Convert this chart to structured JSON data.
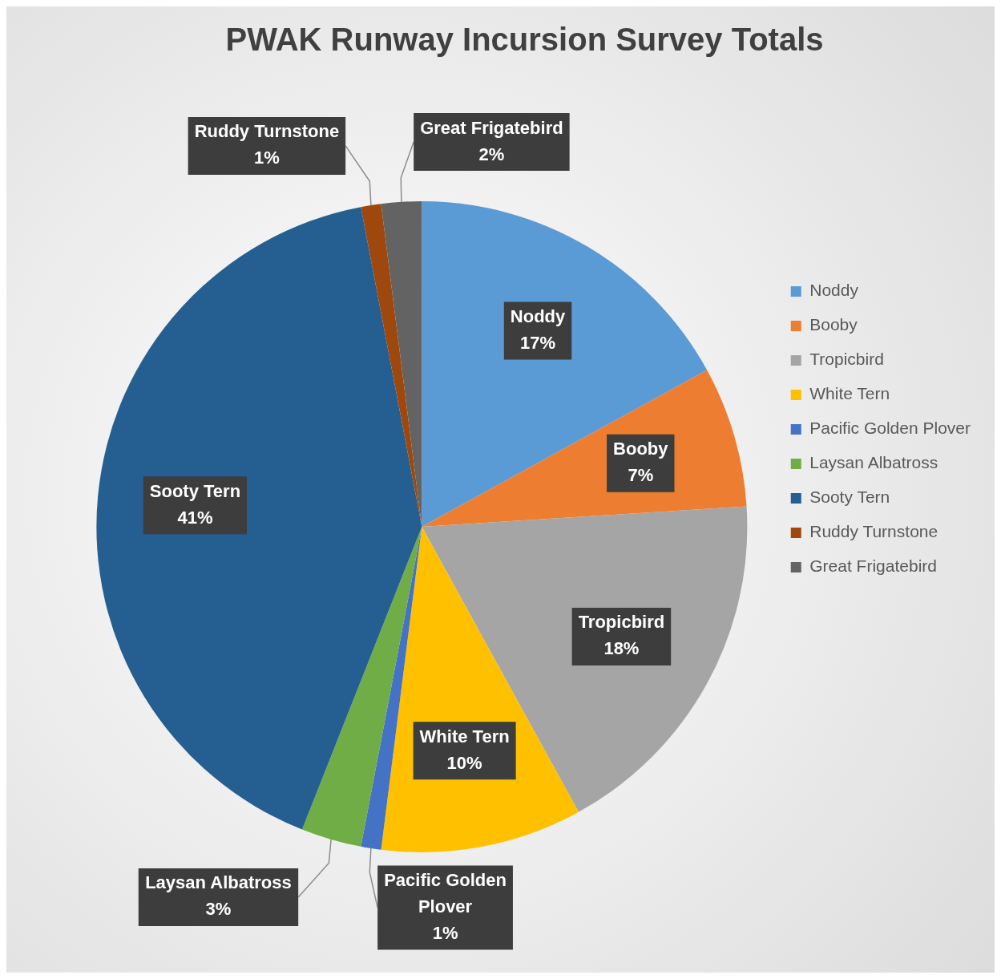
{
  "chart_data": {
    "type": "pie",
    "title": "PWAK Runway Incursion Survey Totals",
    "categories": [
      "Noddy",
      "Booby",
      "Tropicbird",
      "White Tern",
      "Pacific Golden Plover",
      "Laysan Albatross",
      "Sooty Tern",
      "Ruddy Turnstone",
      "Great Frigatebird"
    ],
    "values": [
      17,
      7,
      18,
      10,
      1,
      3,
      41,
      1,
      2
    ],
    "colors": [
      "#5b9bd5",
      "#ed7d31",
      "#a5a5a5",
      "#ffc000",
      "#4472c4",
      "#70ad47",
      "#255e91",
      "#9e480e",
      "#636363"
    ],
    "value_labels": [
      "17%",
      "7%",
      "18%",
      "10%",
      "1%",
      "3%",
      "41%",
      "1%",
      "2%"
    ],
    "legend": "right"
  }
}
